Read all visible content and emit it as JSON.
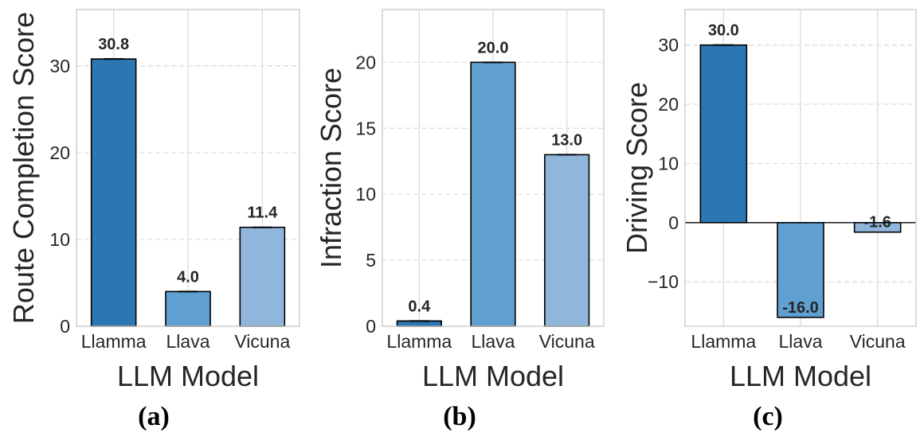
{
  "colors": {
    "llamma": "#2c76b3",
    "llava": "#60a0d0",
    "vicuna": "#91b6dc",
    "grid": "#d9d9d9",
    "spine": "#cccccc",
    "bar_edge": "#000000",
    "text": "#262626"
  },
  "chart_data": [
    {
      "type": "bar",
      "panel_label": "(a)",
      "categories": [
        "Llamma",
        "Llava",
        "Vicuna"
      ],
      "values": [
        30.8,
        4.0,
        11.4
      ],
      "value_labels": [
        "30.8",
        "4.0",
        "11.4"
      ],
      "title": "",
      "xlabel": "LLM Model",
      "ylabel": "Route Completion Score",
      "ylim": [
        0,
        36.5
      ],
      "yticks": [
        0,
        10,
        20,
        30
      ],
      "ytick_labels": [
        "0",
        "10",
        "20",
        "30"
      ],
      "grid": true
    },
    {
      "type": "bar",
      "panel_label": "(b)",
      "categories": [
        "Llamma",
        "Llava",
        "Vicuna"
      ],
      "values": [
        0.4,
        20.0,
        13.0
      ],
      "value_labels": [
        "0.4",
        "20.0",
        "13.0"
      ],
      "title": "",
      "xlabel": "LLM Model",
      "ylabel": "Infraction Score",
      "ylim": [
        0,
        24
      ],
      "yticks": [
        0,
        5,
        10,
        15,
        20
      ],
      "ytick_labels": [
        "0",
        "5",
        "10",
        "15",
        "20"
      ],
      "grid": true
    },
    {
      "type": "bar",
      "panel_label": "(c)",
      "categories": [
        "Llamma",
        "Llava",
        "Vicuna"
      ],
      "values": [
        30.0,
        -16.0,
        -1.6
      ],
      "value_labels": [
        "30.0",
        "-16.0",
        "-1.6"
      ],
      "title": "",
      "xlabel": "LLM Model",
      "ylabel": "Driving Score",
      "ylim": [
        -17.5,
        36
      ],
      "yticks": [
        -10,
        0,
        10,
        20,
        30
      ],
      "ytick_labels": [
        "−10",
        "0",
        "10",
        "20",
        "30"
      ],
      "zero_line": true,
      "grid": true
    }
  ]
}
